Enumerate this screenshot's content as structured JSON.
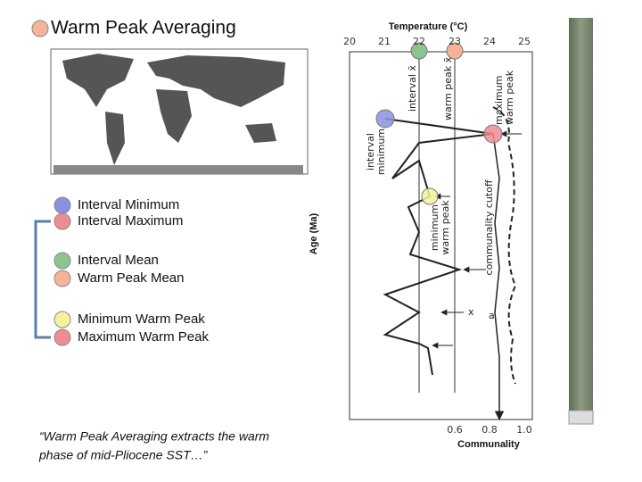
{
  "title": "Warm Peak Averaging",
  "legend_groups": [
    [
      "Interval Minimum",
      "Interval Maximum"
    ],
    [
      "Interval Mean",
      "Warm Peak Mean"
    ],
    [
      "Minimum Warm Peak",
      "Maximum Warm Peak"
    ]
  ],
  "quote": [
    "“Warm Peak Averaging extracts the warm",
    "phase of mid-Pliocene SST…”"
  ],
  "figure": {
    "top_axis_label": "Temperature (°C)",
    "top_ticks": [
      "20",
      "21",
      "22",
      "23",
      "24",
      "25"
    ],
    "bottom_axis_label": "Communality",
    "bottom_ticks": [
      "0.6",
      "0.8",
      "1.0"
    ],
    "y_axis_label": "Age (Ma)",
    "annotations": {
      "interval_mean": "interval x̄",
      "warm_peak_mean": "warm peak x̄",
      "maximum_warm_peak": [
        "maximum",
        "warm peak"
      ],
      "interval_minimum": [
        "interval",
        "minimum"
      ],
      "minimum_warm_peak": [
        "minimum",
        "warm peak"
      ],
      "communality_cutoff": "communality cutoff",
      "x": "x",
      "a": "a"
    }
  }
}
